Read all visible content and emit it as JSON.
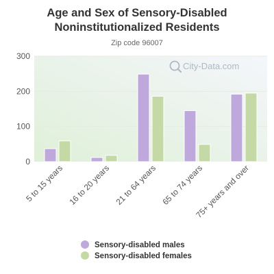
{
  "chart_data": {
    "type": "bar",
    "title_line1": "Age and Sex of Sensory-Disabled",
    "title_line2": "Noninstitutionalized Residents",
    "subtitle": "Zip code 96007",
    "categories": [
      "5 to 15 years",
      "16 to 20 years",
      "21 to 64 years",
      "65 to 74 years",
      "75+ years and over"
    ],
    "series": [
      {
        "name": "Sensory-disabled males",
        "color": "#bfa8dc",
        "values": [
          37,
          12,
          249,
          145,
          192
        ]
      },
      {
        "name": "Sensory-disabled females",
        "color": "#c5d9a6",
        "values": [
          59,
          18,
          186,
          49,
          195
        ]
      }
    ],
    "ylim": [
      0,
      300
    ],
    "yticks": [
      "0",
      "100",
      "200",
      "300"
    ],
    "grid": true,
    "legend_placement": "bottom",
    "watermark": "City-Data.com",
    "background_colors": [
      "#dff0d8",
      "#f4f6fb"
    ]
  }
}
